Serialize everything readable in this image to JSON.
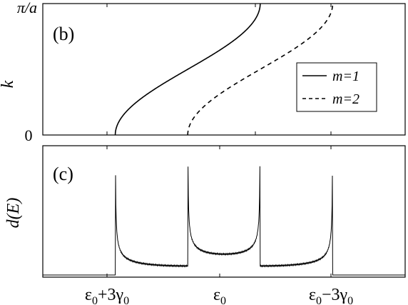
{
  "chart_data": [
    {
      "panel": "(b)",
      "type": "line",
      "xlabel": "",
      "ylabel": "k",
      "y_ticks": [
        {
          "value": 0,
          "label": "0"
        },
        {
          "value": 1,
          "label": "π/a"
        }
      ],
      "xlim": [
        -5,
        5
      ],
      "ylim": [
        0,
        1
      ],
      "legend": {
        "placement": "right"
      },
      "series": [
        {
          "name": "m=1",
          "style": "solid",
          "x": [
            -3.0,
            -2.8,
            -2.5,
            -2.0,
            -1.5,
            -1.0,
            -0.5,
            0.0,
            0.5,
            0.8,
            1.0
          ],
          "y": [
            0.0,
            0.12,
            0.23,
            0.34,
            0.43,
            0.51,
            0.6,
            0.7,
            0.82,
            0.91,
            1.0
          ]
        },
        {
          "name": "m=2",
          "style": "dashed",
          "x": [
            -1.0,
            -0.8,
            -0.5,
            0.0,
            0.5,
            1.0,
            1.5,
            2.0,
            2.5,
            2.8,
            3.0
          ],
          "y": [
            0.0,
            0.12,
            0.23,
            0.34,
            0.43,
            0.51,
            0.6,
            0.7,
            0.82,
            0.91,
            1.0
          ]
        }
      ]
    },
    {
      "panel": "(c)",
      "type": "line",
      "ylabel": "d(E)",
      "xlabel": "",
      "x_ticks": [
        {
          "value": -3,
          "label": "ε₀+3γ₀"
        },
        {
          "value": 0,
          "label": "ε₀"
        },
        {
          "value": 3,
          "label": "ε₀−3γ₀"
        }
      ],
      "xlim": [
        -5,
        5
      ],
      "ylim": [
        0,
        1
      ],
      "features": {
        "van_hove_peaks": [
          -3,
          -1,
          1,
          3
        ],
        "note": "density of states with singularities at band edges"
      }
    }
  ],
  "labels": {
    "panel_b": "(b)",
    "panel_c": "(c)",
    "ylabel_b": "k",
    "ylabel_c": "d(E)",
    "ytick_b_top": "π/a",
    "ytick_b_bottom": "0",
    "legend_m1": "m=1",
    "legend_m2": "m=2"
  }
}
